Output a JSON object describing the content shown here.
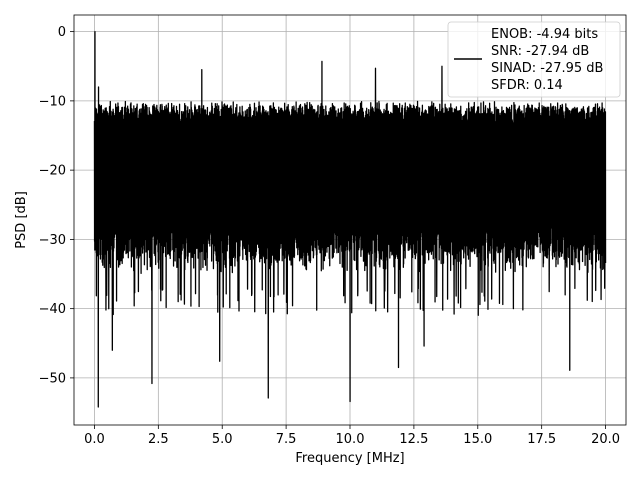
{
  "chart_data": {
    "type": "line",
    "title": "",
    "xlabel": "Frequency [MHz]",
    "ylabel": "PSD [dB]",
    "xlim": [
      -0.8,
      20.8
    ],
    "ylim": [
      -56.8,
      2.4
    ],
    "xticks": [
      0.0,
      2.5,
      5.0,
      7.5,
      10.0,
      12.5,
      15.0,
      17.5,
      20.0
    ],
    "xtick_labels": [
      "0.0",
      "2.5",
      "5.0",
      "7.5",
      "10.0",
      "12.5",
      "15.0",
      "17.5",
      "20.0"
    ],
    "yticks": [
      0,
      -10,
      -20,
      -30,
      -40,
      -50
    ],
    "ytick_labels": [
      "0",
      "−10",
      "−20",
      "−30",
      "−40",
      "−50"
    ],
    "grid": true,
    "legend_position": "top-right",
    "series": [
      {
        "name": "ENOB: -4.94 bits\nSNR: -27.94 dB\nSINAD: -27.95 dB\nSFDR: 0.14",
        "color": "#000000",
        "num_points": 4000,
        "x_range": [
          0.0,
          20.0
        ],
        "typical_top_db": -10,
        "typical_bottom_db": -33,
        "peaks": [
          {
            "x": 0.02,
            "y": 0.0
          },
          {
            "x": 0.16,
            "y": -8.0
          },
          {
            "x": 4.2,
            "y": -5.5
          },
          {
            "x": 8.9,
            "y": -4.3
          },
          {
            "x": 11.0,
            "y": -5.3
          },
          {
            "x": 13.6,
            "y": -5.0
          }
        ],
        "troughs": [
          {
            "x": 0.15,
            "y": -54.2
          },
          {
            "x": 0.45,
            "y": -40.2
          },
          {
            "x": 0.7,
            "y": -46.0
          },
          {
            "x": 2.25,
            "y": -50.8
          },
          {
            "x": 4.9,
            "y": -47.6
          },
          {
            "x": 6.8,
            "y": -52.9
          },
          {
            "x": 10.0,
            "y": -53.4
          },
          {
            "x": 11.9,
            "y": -48.5
          },
          {
            "x": 12.9,
            "y": -45.4
          },
          {
            "x": 18.6,
            "y": -48.9
          }
        ]
      }
    ]
  }
}
